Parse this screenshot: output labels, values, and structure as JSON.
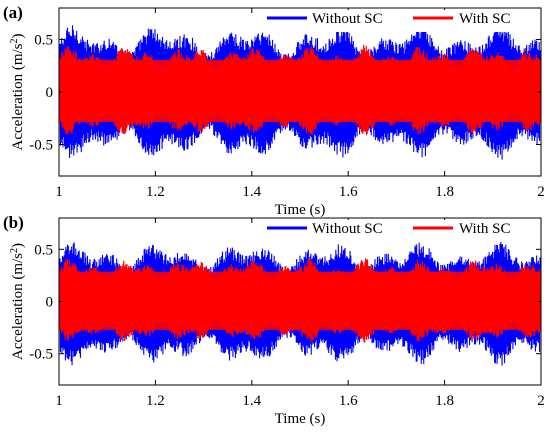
{
  "chart_data": [
    {
      "type": "line",
      "panel_label": "(a)",
      "xlabel": "Time (s)",
      "ylabel_main": "Acceleration (m/s",
      "ylabel_sup": "2",
      "ylabel_tail": ")",
      "xlim": [
        1,
        2
      ],
      "ylim": [
        -0.8,
        0.8
      ],
      "xticks": [
        1,
        1.2,
        1.4,
        1.6,
        1.8,
        2
      ],
      "xtick_labels": [
        "1",
        "1.2",
        "1.4",
        "1.6",
        "1.8",
        "2"
      ],
      "yticks": [
        0.5,
        0,
        -0.5
      ],
      "ytick_labels": [
        "0.5",
        "0",
        "-0.5"
      ],
      "legend_position": "top-right",
      "series": [
        {
          "name": "Without SC",
          "color": "#0000ff",
          "envelope_approx": [
            -0.65,
            0.65
          ]
        },
        {
          "name": "With SC",
          "color": "#ff0000",
          "envelope_approx": [
            -0.42,
            0.45
          ]
        }
      ]
    },
    {
      "type": "line",
      "panel_label": "(b)",
      "xlabel": "Time (s)",
      "ylabel_main": "Acceleration (m/s",
      "ylabel_sup": "2",
      "ylabel_tail": ")",
      "xlim": [
        1,
        2
      ],
      "ylim": [
        -0.8,
        0.8
      ],
      "xticks": [
        1,
        1.2,
        1.4,
        1.6,
        1.8,
        2
      ],
      "xtick_labels": [
        "1",
        "1.2",
        "1.4",
        "1.6",
        "1.8",
        "2"
      ],
      "yticks": [
        0.5,
        0,
        -0.5
      ],
      "ytick_labels": [
        "0.5",
        "0",
        "-0.5"
      ],
      "legend_position": "top-right",
      "series": [
        {
          "name": "Without SC",
          "color": "#0000ff",
          "envelope_approx": [
            -0.62,
            0.58
          ]
        },
        {
          "name": "With SC",
          "color": "#ff0000",
          "envelope_approx": [
            -0.4,
            0.42
          ]
        }
      ]
    }
  ]
}
